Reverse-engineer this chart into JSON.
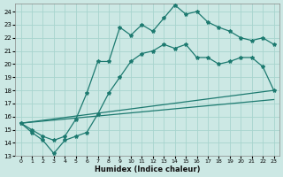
{
  "bg_color": "#cce8e4",
  "grid_color": "#a8d4ce",
  "line_color": "#1d7a70",
  "xlabel": "Humidex (Indice chaleur)",
  "xlim": [
    -0.5,
    23.5
  ],
  "ylim": [
    13,
    24.6
  ],
  "xticks": [
    0,
    1,
    2,
    3,
    4,
    5,
    6,
    7,
    8,
    9,
    10,
    11,
    12,
    13,
    14,
    15,
    16,
    17,
    18,
    19,
    20,
    21,
    22,
    23
  ],
  "yticks": [
    13,
    14,
    15,
    16,
    17,
    18,
    19,
    20,
    21,
    22,
    23,
    24
  ],
  "line1_x": [
    0,
    1,
    2,
    3,
    4,
    5,
    6,
    7,
    8,
    9,
    10,
    11,
    12,
    13,
    14,
    15,
    16,
    17,
    18,
    19,
    20,
    21,
    22,
    23
  ],
  "line1_y": [
    15.5,
    15.0,
    14.5,
    14.2,
    14.5,
    15.8,
    17.8,
    20.2,
    20.2,
    22.8,
    22.2,
    23.0,
    22.5,
    23.5,
    24.5,
    23.8,
    24.0,
    23.2,
    22.8,
    22.5,
    22.0,
    21.8,
    22.0,
    21.5
  ],
  "line2_x": [
    0,
    1,
    2,
    3,
    4,
    5,
    6,
    7,
    8,
    9,
    10,
    11,
    12,
    13,
    14,
    15,
    16,
    17,
    18,
    19,
    20,
    21,
    22,
    23
  ],
  "line2_y": [
    15.5,
    14.8,
    14.2,
    13.2,
    14.2,
    14.5,
    14.8,
    16.2,
    17.8,
    19.0,
    20.2,
    20.8,
    21.0,
    21.5,
    21.2,
    21.5,
    20.5,
    20.5,
    20.0,
    20.2,
    20.5,
    20.5,
    19.8,
    18.0
  ],
  "line3_x": [
    0,
    23
  ],
  "line3_y": [
    15.5,
    17.8
  ],
  "line4_x": [
    0,
    23
  ],
  "line4_y": [
    15.5,
    17.8
  ],
  "marker_x1": [
    0,
    1,
    2,
    3,
    4,
    5,
    6,
    7,
    8,
    9,
    10,
    11,
    12,
    13,
    14,
    15,
    16,
    17,
    18,
    19,
    20,
    21,
    22,
    23
  ],
  "marker_y1": [
    15.5,
    15.0,
    14.5,
    14.2,
    14.5,
    15.8,
    17.8,
    20.2,
    20.2,
    22.8,
    22.2,
    23.0,
    22.5,
    23.5,
    24.5,
    23.8,
    24.0,
    23.2,
    22.8,
    22.5,
    22.0,
    21.8,
    22.0,
    21.5
  ],
  "marker_x2": [
    0,
    1,
    2,
    3,
    4,
    5,
    6,
    7,
    8,
    9,
    10,
    11,
    12,
    13,
    14,
    15,
    16,
    17,
    18,
    19,
    20,
    21,
    22,
    23
  ],
  "marker_y2": [
    15.5,
    14.8,
    14.2,
    13.2,
    14.2,
    14.5,
    14.8,
    16.2,
    17.8,
    19.0,
    20.2,
    20.8,
    21.0,
    21.5,
    21.2,
    21.5,
    20.5,
    20.5,
    20.0,
    20.2,
    20.5,
    20.5,
    19.8,
    18.0
  ]
}
